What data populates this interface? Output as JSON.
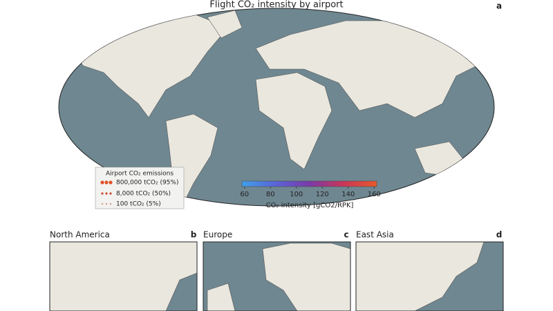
{
  "title": "Flight CO₂ intensity by airport",
  "panels": [
    {
      "label": "a"
    },
    {
      "title": "North America",
      "label": "b"
    },
    {
      "title": "Europe",
      "label": "c"
    },
    {
      "title": "East Asia",
      "label": "d"
    }
  ],
  "legend": {
    "title": "Airport CO₂ emissions",
    "entries": [
      "800,000 tCO₂ (95%)",
      "8,000 tCO₂ (50%)",
      "100 tCO₂ (5%)"
    ]
  },
  "colorbar": {
    "label": "CO₂ intensity [gCO2/RPK]",
    "lim": [
      58,
      162
    ],
    "ticks": [
      60,
      80,
      100,
      120,
      140,
      160
    ],
    "colors": [
      "#3fa0e8",
      "#5a64d8",
      "#7a3aa8",
      "#c8365a",
      "#e8582a"
    ]
  }
}
